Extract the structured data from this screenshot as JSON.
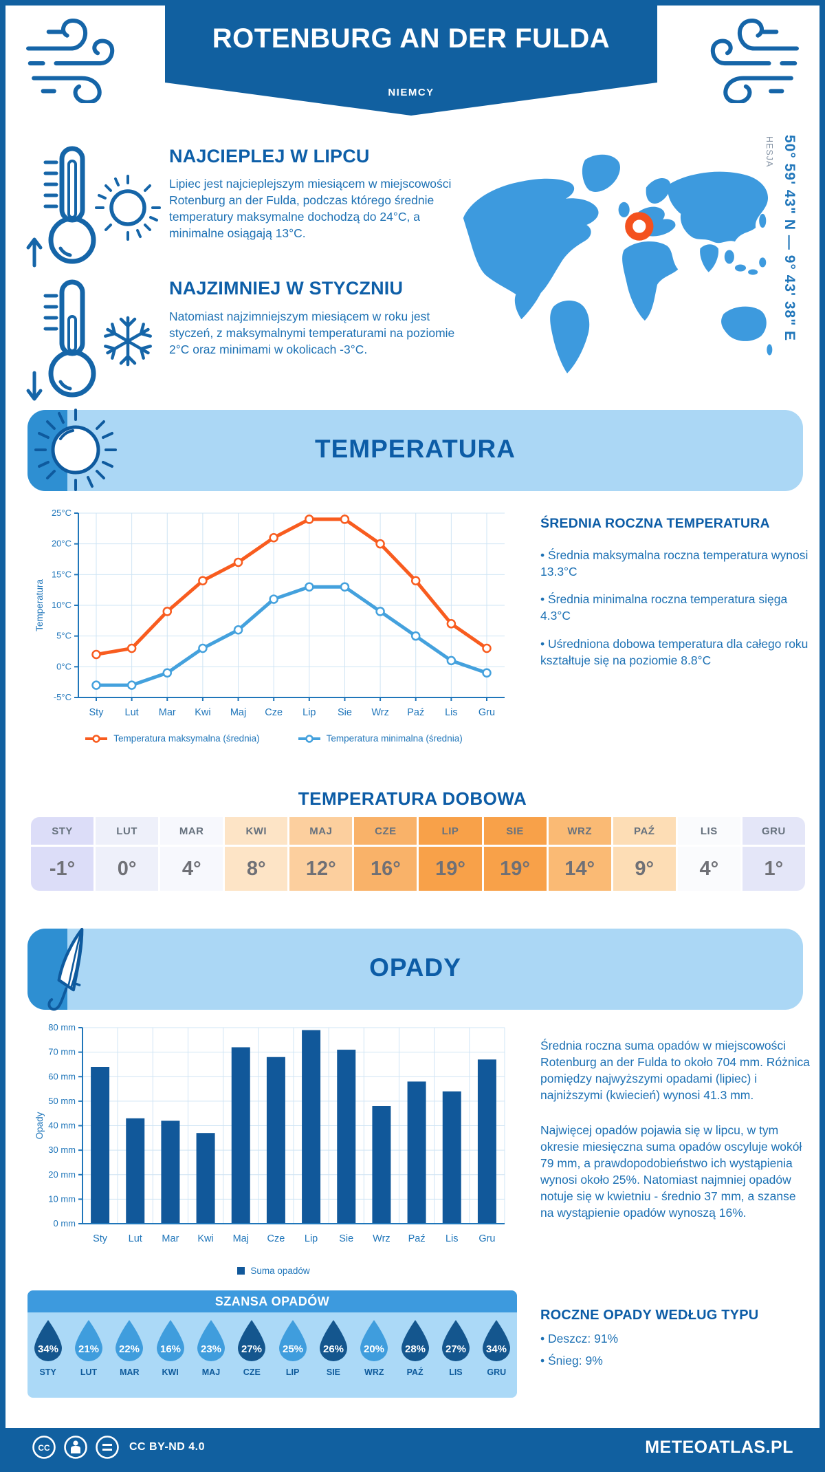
{
  "header": {
    "title": "ROTENBURG AN DER FULDA",
    "subtitle": "NIEMCY"
  },
  "location": {
    "coordinates": "50° 59' 43\" N — 9° 43' 38\" E",
    "region": "HESJA"
  },
  "highlights": [
    {
      "title": "NAJCIEPLEJ W LIPCU",
      "text": "Lipiec jest najcieplejszym miesiącem w miejscowości Rotenburg an der Fulda, podczas którego średnie temperatury maksymalne dochodzą do 24°C, a minimalne osiągają 13°C."
    },
    {
      "title": "NAJZIMNIEJ W STYCZNIU",
      "text": "Natomiast najzimniejszym miesiącem w roku jest styczeń, z maksymalnymi temperaturami na poziomie 2°C oraz minimami w okolicach -3°C."
    }
  ],
  "temperature": {
    "banner": "TEMPERATURA",
    "annual_title": "ŚREDNIA ROCZNA TEMPERATURA",
    "annual_bullets": [
      "• Średnia maksymalna roczna temperatura wynosi 13.3°C",
      "• Średnia minimalna roczna temperatura sięga 4.3°C",
      "• Uśredniona dobowa temperatura dla całego roku kształtuje się na poziomie 8.8°C"
    ],
    "daily_title": "TEMPERATURA DOBOWA",
    "daily": {
      "months": [
        "STY",
        "LUT",
        "MAR",
        "KWI",
        "MAJ",
        "CZE",
        "LIP",
        "SIE",
        "WRZ",
        "PAŹ",
        "LIS",
        "GRU"
      ],
      "values": [
        "-1°",
        "0°",
        "4°",
        "8°",
        "12°",
        "16°",
        "19°",
        "19°",
        "14°",
        "9°",
        "4°",
        "1°"
      ],
      "cell_colors": [
        "#dcddf8",
        "#eef0fa",
        "#f7f8fd",
        "#fde4c6",
        "#fccf9e",
        "#f9b269",
        "#f8a149",
        "#f8a149",
        "#faba74",
        "#fdddb5",
        "#fafbfd",
        "#e4e6f8"
      ]
    }
  },
  "precipitation": {
    "banner": "OPADY",
    "paragraphs": [
      "Średnia roczna suma opadów w miejscowości Rotenburg an der Fulda to około 704 mm. Różnica pomiędzy najwyższymi opadami (lipiec) i najniższymi (kwiecień) wynosi 41.3 mm.",
      "Najwięcej opadów pojawia się w lipcu, w tym okresie miesięczna suma opadów oscyluje wokół 79 mm, a prawdopodobieństwo ich wystąpienia wynosi około 25%. Natomiast najmniej opadów notuje się w kwietniu - średnio 37 mm, a szanse na wystąpienie opadów wynoszą 16%."
    ],
    "chance_title": "SZANSA OPADÓW",
    "chance": {
      "months": [
        "STY",
        "LUT",
        "MAR",
        "KWI",
        "MAJ",
        "CZE",
        "LIP",
        "SIE",
        "WRZ",
        "PAŹ",
        "LIS",
        "GRU"
      ],
      "values": [
        "34%",
        "21%",
        "22%",
        "16%",
        "23%",
        "27%",
        "25%",
        "26%",
        "20%",
        "28%",
        "27%",
        "34%"
      ],
      "dark": [
        true,
        false,
        false,
        false,
        false,
        true,
        false,
        true,
        false,
        true,
        true,
        true
      ],
      "drop_dark_color": "#14568e",
      "drop_light_color": "#3f9ddd"
    },
    "type_title": "ROCZNE OPADY WEDŁUG TYPU",
    "type_bullets": [
      "• Deszcz: 91%",
      "• Śnieg: 9%"
    ]
  },
  "footer": {
    "license": "CC BY-ND 4.0",
    "site": "METEOATLAS.PL"
  },
  "palette": {
    "primary_dark": "#1160a0",
    "heading_blue": "#0c5ca6",
    "body_blue": "#1d71b4",
    "light_blue_banner": "#abd7f5",
    "medium_blue": "#3d9ade",
    "map_land": "#3d9ade",
    "marker_orange": "#f4511e",
    "bar_blue": "#11589a",
    "axis_blue": "#2076ba"
  },
  "chart_data": [
    {
      "type": "line",
      "categories": [
        "Sty",
        "Lut",
        "Mar",
        "Kwi",
        "Maj",
        "Cze",
        "Lip",
        "Sie",
        "Wrz",
        "Paź",
        "Lis",
        "Gru"
      ],
      "series": [
        {
          "name": "Temperatura maksymalna (średnia)",
          "color": "#f85c1f",
          "values": [
            2,
            3,
            9,
            14,
            17,
            21,
            24,
            24,
            20,
            14,
            7,
            3
          ]
        },
        {
          "name": "Temperatura minimalna (średnia)",
          "color": "#44a1dd",
          "values": [
            -3,
            -3,
            -1,
            3,
            6,
            11,
            13,
            13,
            9,
            5,
            1,
            -1
          ]
        }
      ],
      "xlabel": "",
      "ylabel": "Temperatura",
      "ylim": [
        -5,
        25
      ],
      "ytick_step": 5,
      "yunit": "°C",
      "grid": true,
      "legend_position": "bottom"
    },
    {
      "type": "bar",
      "categories": [
        "Sty",
        "Lut",
        "Mar",
        "Kwi",
        "Maj",
        "Cze",
        "Lip",
        "Sie",
        "Wrz",
        "Paź",
        "Lis",
        "Gru"
      ],
      "values": [
        64,
        43,
        42,
        37,
        72,
        68,
        79,
        71,
        48,
        58,
        54,
        67
      ],
      "series_name": "Suma opadów",
      "color": "#11589a",
      "xlabel": "",
      "ylabel": "Opady",
      "ylim": [
        0,
        80
      ],
      "ytick_step": 10,
      "yunit": " mm",
      "grid": true,
      "legend_position": "bottom"
    }
  ]
}
